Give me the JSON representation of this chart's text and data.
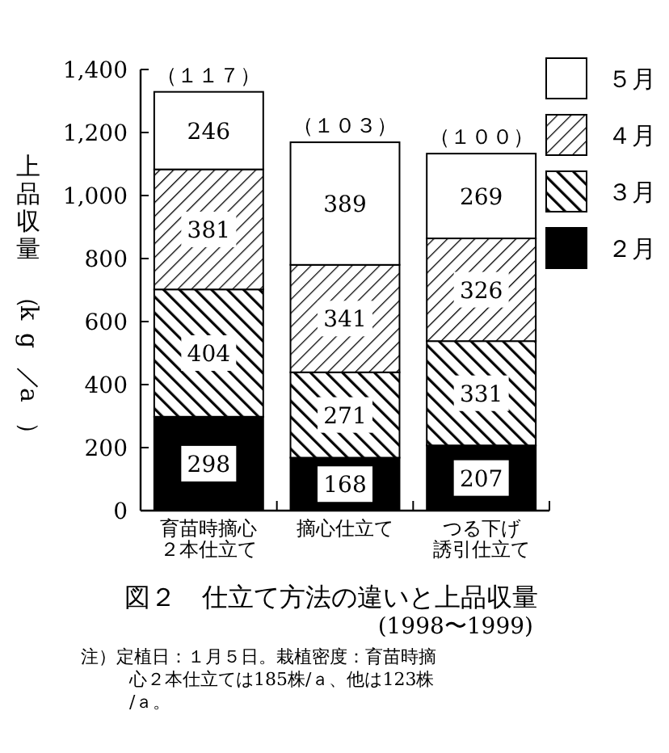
{
  "chart_data": {
    "type": "bar",
    "stacked": true,
    "title": "図２　仕立て方法の違いと上品収量",
    "subtitle": "(1998〜1999)",
    "ylabel": "上品収量（kg／a）",
    "categories": [
      "育苗時摘心２本仕立て",
      "摘心仕立て",
      "つる下げ誘引仕立て"
    ],
    "series": [
      {
        "name": "２月",
        "color": "#000000",
        "values": [
          298,
          168,
          207
        ]
      },
      {
        "name": "３月",
        "color": "#000000",
        "values": [
          404,
          271,
          331
        ]
      },
      {
        "name": "４月",
        "color": "#000000",
        "values": [
          381,
          341,
          326
        ]
      },
      {
        "name": "５月",
        "color": "#ffffff",
        "values": [
          246,
          389,
          269
        ]
      }
    ],
    "ylim": [
      0,
      1400
    ],
    "yticks": [
      0,
      200,
      400,
      600,
      800,
      {
        "value": 1000,
        "label": "1,000"
      },
      {
        "value": 1200,
        "label": "1,200"
      },
      {
        "value": 1400,
        "label": "1,400"
      }
    ],
    "data_labels": true,
    "legend": "top right",
    "grid": false,
    "annotations": [
      {
        "text": "（１１７）",
        "x": "育苗時摘心２本仕立て",
        "y": 1329
      },
      {
        "text": "（１０３）",
        "x": "摘心仕立て",
        "y": 1169
      },
      {
        "text": "（１００）",
        "x": "つる下げ誘引仕立て",
        "y": 1133
      },
      "注）定植日：１月５日。栽植密度：育苗時摘心２本仕立ては185株/ａ、他は123株/ａ。"
    ]
  }
}
